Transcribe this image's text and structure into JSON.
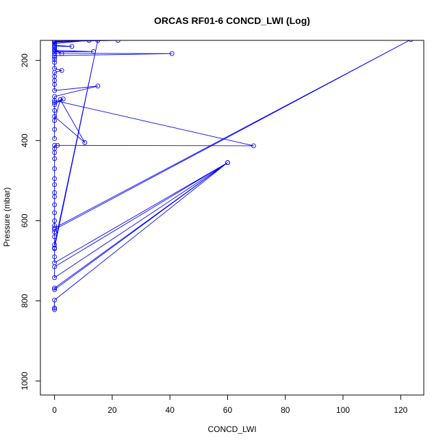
{
  "chart_data": {
    "type": "line",
    "title": "ORCAS RF01-6 CONCD_LWI (Log)",
    "xlabel": "CONCD_LWI",
    "ylabel": "Pressure (mbar)",
    "x_ticks": [
      0,
      20,
      40,
      60,
      80,
      100,
      120
    ],
    "y_ticks": [
      200,
      400,
      600,
      800,
      1000
    ],
    "xlim": [
      -4.9,
      128
    ],
    "ylim": [
      1035,
      150
    ],
    "y_reversed": true,
    "grid": false,
    "legend": "none",
    "series_color": "#0000ff",
    "series": [
      {
        "values": [
          [
            0,
            822
          ],
          [
            0,
            818
          ],
          [
            0,
            818
          ],
          [
            0,
            798
          ],
          [
            60,
            455
          ],
          [
            0,
            772
          ],
          [
            0,
            768
          ],
          [
            60,
            455
          ],
          [
            0,
            742
          ],
          [
            0,
            715
          ],
          [
            60,
            455
          ],
          [
            0,
            705
          ],
          [
            0,
            690
          ],
          [
            0,
            670
          ],
          [
            0,
            668
          ],
          [
            15,
            150
          ],
          [
            0,
            660
          ],
          [
            0,
            640
          ],
          [
            0,
            628
          ],
          [
            0,
            622
          ],
          [
            123.5,
            148
          ],
          [
            0,
            618
          ],
          [
            0,
            612
          ],
          [
            0,
            600
          ],
          [
            0,
            580
          ],
          [
            0,
            560
          ],
          [
            0,
            540
          ],
          [
            0,
            530
          ],
          [
            0,
            510
          ],
          [
            0,
            495
          ],
          [
            0,
            470
          ],
          [
            0,
            445
          ],
          [
            0,
            430
          ],
          [
            0,
            420
          ],
          [
            0,
            412
          ],
          [
            1,
            412
          ],
          [
            69,
            413
          ],
          [
            0,
            300
          ],
          [
            0,
            395
          ],
          [
            0,
            372
          ],
          [
            0,
            350
          ],
          [
            2,
            298
          ],
          [
            10.5,
            405
          ],
          [
            0,
            340
          ],
          [
            0,
            325
          ],
          [
            0,
            310
          ],
          [
            3,
            296
          ],
          [
            0,
            305
          ],
          [
            0,
            290
          ],
          [
            15,
            264
          ],
          [
            0,
            275
          ],
          [
            0,
            260
          ],
          [
            0,
            250
          ],
          [
            0,
            240
          ],
          [
            0,
            230
          ],
          [
            2.5,
            225
          ],
          [
            0,
            220
          ],
          [
            0,
            205
          ],
          [
            0,
            198
          ],
          [
            0,
            192
          ],
          [
            0,
            188
          ],
          [
            40.7,
            183
          ],
          [
            0,
            182
          ],
          [
            0,
            178
          ],
          [
            13.5,
            178
          ],
          [
            0,
            175
          ],
          [
            2.5,
            183
          ],
          [
            0,
            172
          ],
          [
            0,
            168
          ],
          [
            0,
            165
          ],
          [
            6,
            165
          ],
          [
            0,
            162
          ],
          [
            0,
            158
          ],
          [
            12,
            150
          ],
          [
            0,
            155
          ],
          [
            0,
            152
          ],
          [
            22,
            150
          ],
          [
            0,
            153
          ],
          [
            0,
            151
          ]
        ]
      }
    ]
  }
}
